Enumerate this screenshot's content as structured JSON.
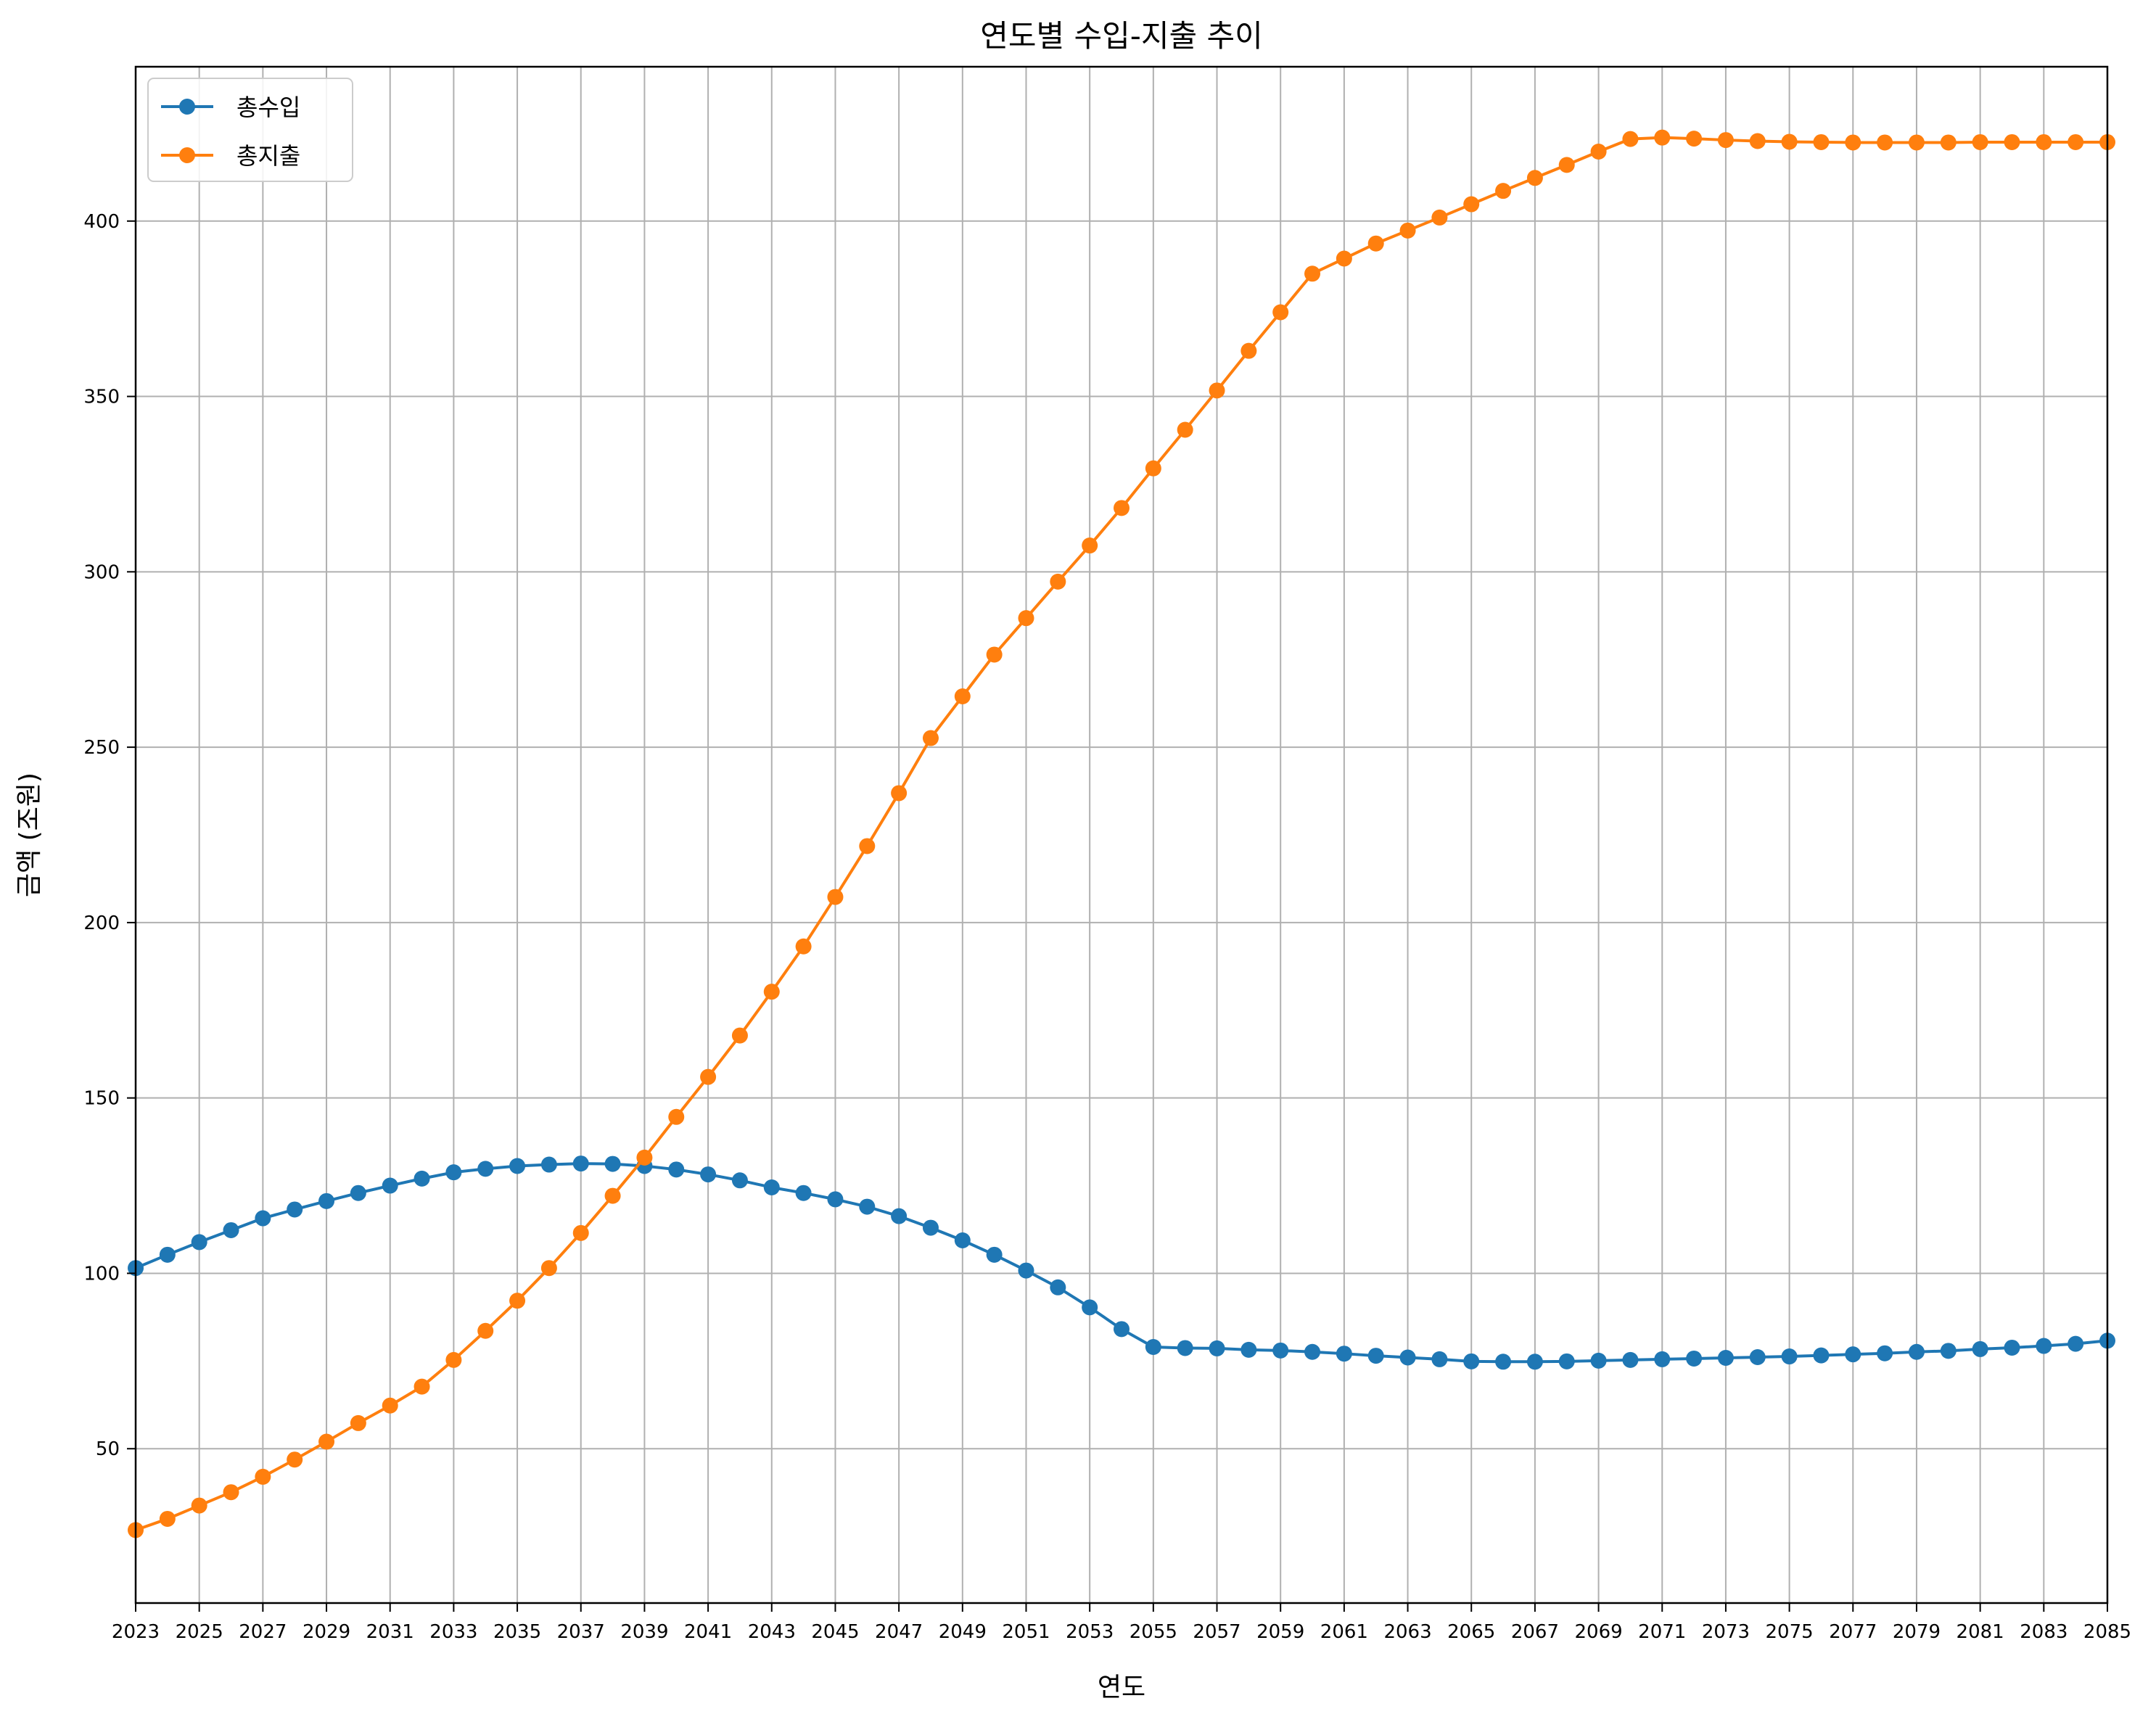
{
  "chart_data": {
    "type": "line",
    "title": "연도별 수입-지출 추이",
    "xlabel": "연도",
    "ylabel": "금액 (조원)",
    "xlim": [
      2023,
      2085
    ],
    "ylim": [
      6,
      444
    ],
    "x_ticks": [
      2023,
      2025,
      2027,
      2029,
      2031,
      2033,
      2035,
      2037,
      2039,
      2041,
      2043,
      2045,
      2047,
      2049,
      2051,
      2053,
      2055,
      2057,
      2059,
      2061,
      2063,
      2065,
      2067,
      2069,
      2071,
      2073,
      2075,
      2077,
      2079,
      2081,
      2083,
      2085
    ],
    "y_ticks": [
      50,
      100,
      150,
      200,
      250,
      300,
      350,
      400
    ],
    "grid": true,
    "legend_position": "top-left",
    "x": [
      2023,
      2024,
      2025,
      2026,
      2027,
      2028,
      2029,
      2030,
      2031,
      2032,
      2033,
      2034,
      2035,
      2036,
      2037,
      2038,
      2039,
      2040,
      2041,
      2042,
      2043,
      2044,
      2045,
      2046,
      2047,
      2048,
      2049,
      2050,
      2051,
      2052,
      2053,
      2054,
      2055,
      2056,
      2057,
      2058,
      2059,
      2060,
      2061,
      2062,
      2063,
      2064,
      2065,
      2066,
      2067,
      2068,
      2069,
      2070,
      2071,
      2072,
      2073,
      2074,
      2075,
      2076,
      2077,
      2078,
      2079,
      2080,
      2081,
      2082,
      2083,
      2084,
      2085
    ],
    "series": [
      {
        "name": "총수입",
        "color": "#1f77b4",
        "values": [
          101.5,
          105.3,
          108.9,
          112.3,
          115.7,
          118.2,
          120.6,
          122.9,
          125.0,
          127.0,
          128.8,
          129.8,
          130.6,
          131.0,
          131.3,
          131.2,
          130.6,
          129.6,
          128.2,
          126.5,
          124.5,
          122.9,
          121.1,
          119.0,
          116.3,
          113.0,
          109.4,
          105.3,
          100.8,
          96.0,
          90.3,
          84.1,
          79.0,
          78.7,
          78.6,
          78.2,
          78.0,
          77.6,
          77.1,
          76.5,
          76.0,
          75.5,
          74.9,
          74.8,
          74.8,
          74.9,
          75.1,
          75.3,
          75.5,
          75.7,
          75.9,
          76.1,
          76.3,
          76.6,
          76.9,
          77.2,
          77.6,
          77.9,
          78.4,
          78.8,
          79.3,
          79.9,
          80.8
        ]
      },
      {
        "name": "총지출",
        "color": "#ff7f0e",
        "values": [
          26.8,
          30.0,
          33.8,
          37.6,
          42.0,
          46.9,
          52.0,
          57.3,
          62.3,
          67.7,
          75.3,
          83.6,
          92.2,
          101.5,
          111.5,
          122.1,
          133.0,
          144.6,
          156.0,
          167.8,
          180.3,
          193.2,
          207.3,
          221.8,
          236.9,
          252.6,
          264.5,
          276.4,
          286.8,
          297.2,
          307.5,
          318.2,
          329.5,
          340.5,
          351.7,
          363.0,
          374.0,
          385.0,
          389.3,
          393.6,
          397.3,
          401.0,
          404.8,
          408.6,
          412.3,
          416.0,
          419.8,
          423.4,
          423.8,
          423.5,
          423.1,
          422.8,
          422.6,
          422.5,
          422.4,
          422.4,
          422.4,
          422.4,
          422.5,
          422.5,
          422.5,
          422.5,
          422.5
        ]
      }
    ]
  }
}
